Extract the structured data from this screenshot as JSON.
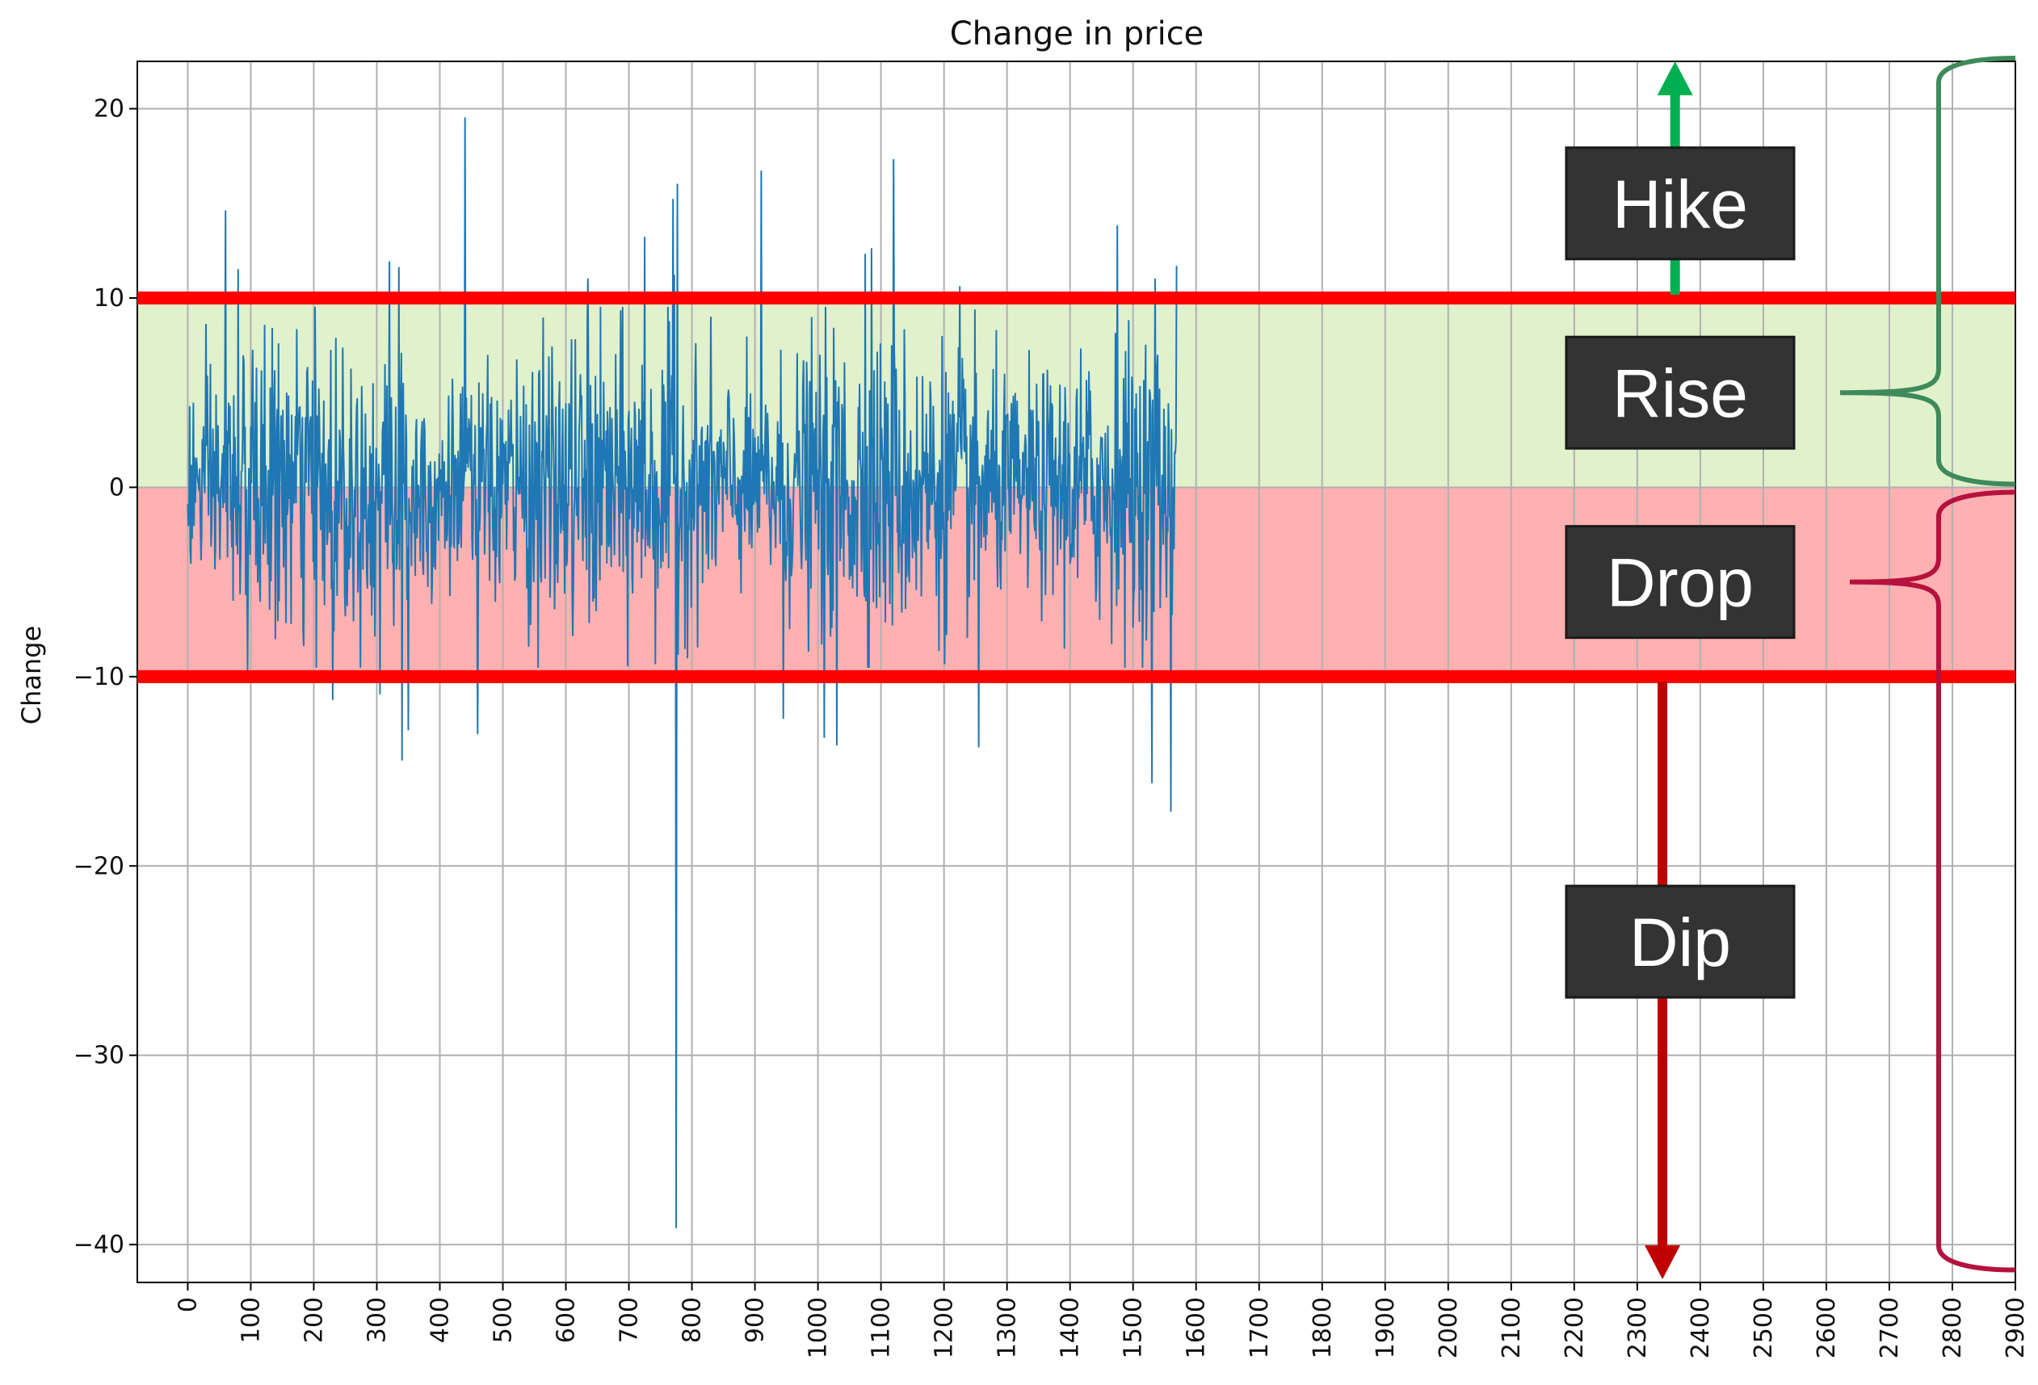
{
  "chart_data": {
    "type": "line",
    "title": "Change in price",
    "xlabel": "",
    "ylabel": "Change",
    "xlim": [
      -80,
      2900
    ],
    "ylim": [
      -42,
      22.5
    ],
    "x_ticks": [
      0,
      100,
      200,
      300,
      400,
      500,
      600,
      700,
      800,
      900,
      1000,
      1100,
      1200,
      1300,
      1400,
      1500,
      1600,
      1700,
      1800,
      1900,
      2000,
      2100,
      2200,
      2300,
      2400,
      2500,
      2600,
      2700,
      2800,
      2900
    ],
    "y_ticks": [
      20,
      10,
      0,
      -10,
      -20,
      -30,
      -40
    ],
    "grid": true,
    "series": [
      {
        "color": "#1f77b4",
        "n_points": 1570,
        "spikes": [
          {
            "x": 60,
            "y": 14.6
          },
          {
            "x": 80,
            "y": 11.5
          },
          {
            "x": 95,
            "y": -9.8
          },
          {
            "x": 230,
            "y": -11.2
          },
          {
            "x": 305,
            "y": -10.9
          },
          {
            "x": 320,
            "y": 11.9
          },
          {
            "x": 335,
            "y": 11.6
          },
          {
            "x": 340,
            "y": -14.4
          },
          {
            "x": 350,
            "y": -12.8
          },
          {
            "x": 440,
            "y": 19.5
          },
          {
            "x": 460,
            "y": -13.0
          },
          {
            "x": 635,
            "y": 11.0
          },
          {
            "x": 725,
            "y": 13.2
          },
          {
            "x": 770,
            "y": 15.2
          },
          {
            "x": 772,
            "y": 11.2
          },
          {
            "x": 775,
            "y": -39.1
          },
          {
            "x": 777,
            "y": 16.0
          },
          {
            "x": 910,
            "y": 16.7
          },
          {
            "x": 945,
            "y": -12.2
          },
          {
            "x": 1010,
            "y": -13.2
          },
          {
            "x": 1030,
            "y": -13.6
          },
          {
            "x": 1075,
            "y": 12.3
          },
          {
            "x": 1085,
            "y": 12.6
          },
          {
            "x": 1120,
            "y": 17.3
          },
          {
            "x": 1225,
            "y": 10.6
          },
          {
            "x": 1255,
            "y": -13.7
          },
          {
            "x": 1475,
            "y": 13.8
          },
          {
            "x": 1530,
            "y": -15.6
          },
          {
            "x": 1535,
            "y": 11.0
          },
          {
            "x": 1560,
            "y": -17.1
          },
          {
            "x": 1570,
            "y": 11.7
          }
        ]
      }
    ],
    "bands": [
      {
        "y0": 0,
        "y1": 10,
        "color": "#c6e6a0"
      },
      {
        "y0": -10,
        "y1": 0,
        "color": "#ff6f6f"
      }
    ],
    "thresholds": [
      10,
      -10
    ],
    "threshold_color": "#ff0000",
    "arrow_up_color": "#00b050",
    "arrow_down_color": "#c00000",
    "brace_top_color": "#3f8a5a",
    "brace_bottom_color": "#b5123e",
    "box_color": "#333333",
    "annotations": [
      "Hike",
      "Rise",
      "Drop",
      "Dip"
    ]
  }
}
